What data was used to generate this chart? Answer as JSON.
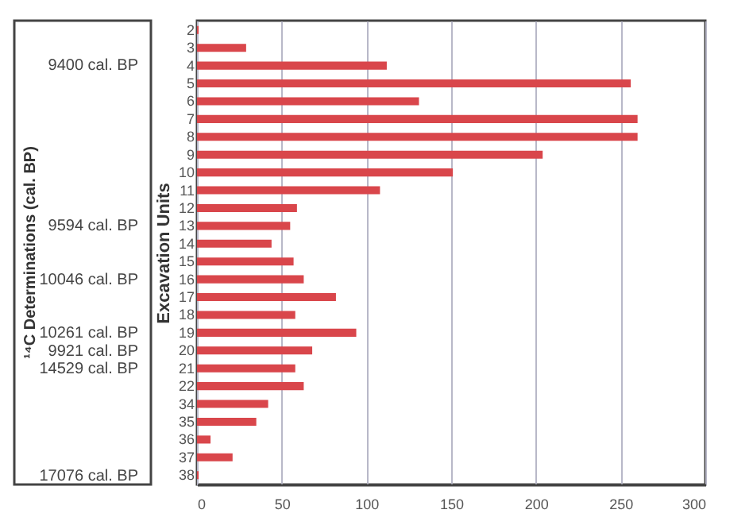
{
  "chart_data": {
    "type": "bar",
    "orientation": "horizontal",
    "ylabel": "Excavation Units",
    "categories": [
      "2",
      "3",
      "4",
      "5",
      "6",
      "7",
      "8",
      "9",
      "10",
      "11",
      "12",
      "13",
      "14",
      "15",
      "16",
      "17",
      "18",
      "19",
      "20",
      "21",
      "22",
      "34",
      "35",
      "36",
      "37",
      "38"
    ],
    "values": [
      1,
      29,
      112,
      256,
      131,
      260,
      260,
      204,
      151,
      108,
      59,
      55,
      44,
      57,
      63,
      82,
      58,
      94,
      68,
      58,
      63,
      42,
      35,
      8,
      21,
      1
    ],
    "color": "#d9464b",
    "xlim": [
      0,
      300
    ],
    "xticks": [
      0,
      50,
      100,
      150,
      200,
      250,
      300
    ],
    "grid": "x",
    "legend": false,
    "annotations": [
      "¹⁴C Determinations (cal. BP)",
      "9400 cal. BP",
      "9594 cal. BP",
      "10046 cal. BP",
      "10261 cal. BP",
      "9921 cal. BP",
      "14529 cal. BP",
      "17076 cal. BP"
    ]
  }
}
